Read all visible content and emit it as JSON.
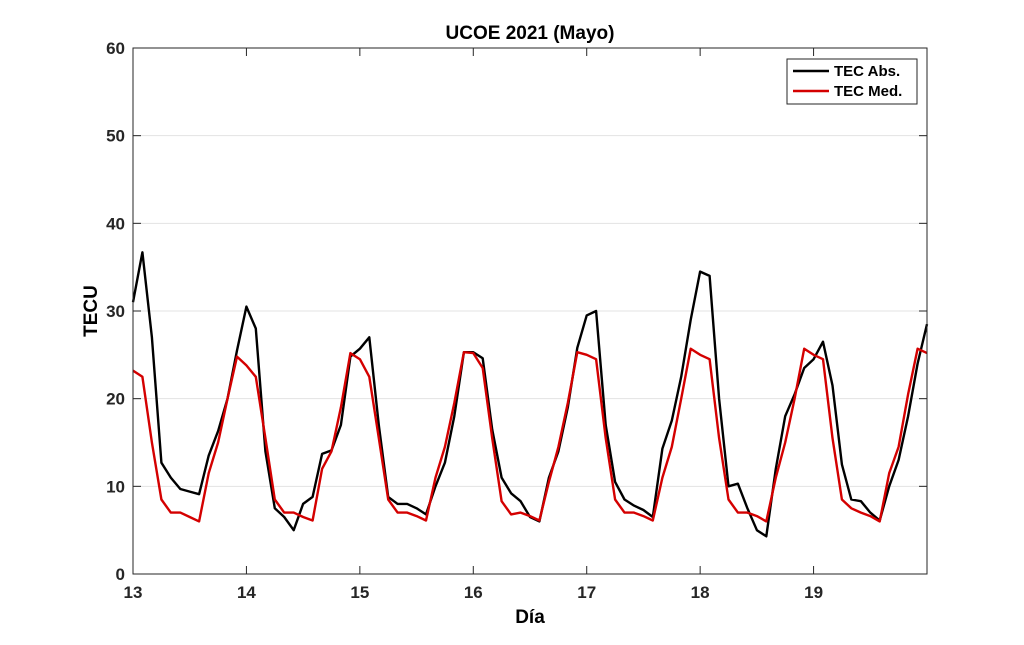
{
  "chart_data": {
    "type": "line",
    "title": "UCOE 2021 (Mayo)",
    "xlabel": "Día",
    "ylabel": "TECU",
    "xlim": [
      13,
      20
    ],
    "ylim": [
      0,
      60
    ],
    "x_ticks": [
      13,
      14,
      15,
      16,
      17,
      18,
      19
    ],
    "y_ticks": [
      0,
      10,
      20,
      30,
      40,
      50,
      60
    ],
    "grid": "horizontal",
    "legend_position": "top-right",
    "x": [
      13.0,
      13.083,
      13.167,
      13.25,
      13.333,
      13.417,
      13.5,
      13.583,
      13.667,
      13.75,
      13.833,
      13.917,
      14.0,
      14.083,
      14.167,
      14.25,
      14.333,
      14.417,
      14.5,
      14.583,
      14.667,
      14.75,
      14.833,
      14.917,
      15.0,
      15.083,
      15.167,
      15.25,
      15.333,
      15.417,
      15.5,
      15.583,
      15.667,
      15.75,
      15.833,
      15.917,
      16.0,
      16.083,
      16.167,
      16.25,
      16.333,
      16.417,
      16.5,
      16.583,
      16.667,
      16.75,
      16.833,
      16.917,
      17.0,
      17.083,
      17.167,
      17.25,
      17.333,
      17.417,
      17.5,
      17.583,
      17.667,
      17.75,
      17.833,
      17.917,
      18.0,
      18.083,
      18.167,
      18.25,
      18.333,
      18.417,
      18.5,
      18.583,
      18.667,
      18.75,
      18.833,
      18.917,
      19.0,
      19.083,
      19.167,
      19.25,
      19.333,
      19.417,
      19.5,
      19.583,
      19.667,
      19.75,
      19.833,
      19.917,
      20.0
    ],
    "series": [
      {
        "name": "TEC Abs.",
        "color": "#000000",
        "values": [
          31.0,
          36.7,
          27.0,
          12.7,
          11.0,
          9.7,
          9.4,
          9.1,
          13.5,
          16.3,
          20.0,
          25.5,
          30.5,
          28.0,
          14.0,
          7.5,
          6.5,
          5.0,
          8.0,
          8.8,
          13.7,
          14.1,
          17.0,
          24.8,
          25.7,
          27.0,
          17.0,
          8.8,
          8.0,
          8.0,
          7.5,
          6.8,
          10.0,
          12.7,
          18.0,
          25.3,
          25.3,
          24.6,
          16.5,
          11.0,
          9.2,
          8.3,
          6.5,
          6.0,
          11.0,
          14.0,
          19.0,
          25.8,
          29.5,
          30.0,
          17.0,
          10.5,
          8.5,
          7.8,
          7.3,
          6.5,
          14.3,
          17.5,
          22.5,
          29.0,
          34.5,
          34.0,
          20.0,
          10.0,
          10.3,
          7.5,
          5.0,
          4.3,
          12.0,
          18.0,
          20.5,
          23.5,
          24.5,
          26.5,
          21.5,
          12.5,
          8.5,
          8.3,
          7.0,
          6.1,
          10.0,
          13.0,
          18.0,
          24.0,
          28.5
        ]
      },
      {
        "name": "TEC Med.",
        "color": "#d40000",
        "values": [
          23.2,
          22.5,
          15.0,
          8.5,
          7.0,
          7.0,
          6.5,
          6.0,
          11.5,
          15.0,
          20.0,
          24.8,
          23.8,
          22.5,
          15.5,
          8.5,
          7.0,
          7.0,
          6.5,
          6.1,
          12.0,
          14.0,
          19.0,
          25.2,
          24.5,
          22.5,
          15.5,
          8.5,
          7.0,
          7.0,
          6.6,
          6.1,
          11.0,
          14.5,
          19.5,
          25.3,
          25.2,
          23.5,
          15.5,
          8.3,
          6.8,
          7.0,
          6.6,
          6.1,
          10.5,
          14.5,
          19.5,
          25.3,
          25.0,
          24.5,
          15.5,
          8.5,
          7.0,
          7.0,
          6.6,
          6.1,
          11.0,
          14.5,
          20.0,
          25.7,
          25.0,
          24.5,
          15.5,
          8.5,
          7.0,
          7.0,
          6.6,
          6.0,
          11.0,
          15.0,
          20.0,
          25.7,
          25.0,
          24.5,
          15.5,
          8.5,
          7.5,
          7.0,
          6.6,
          6.0,
          11.5,
          14.5,
          20.5,
          25.7,
          25.2
        ]
      }
    ]
  }
}
